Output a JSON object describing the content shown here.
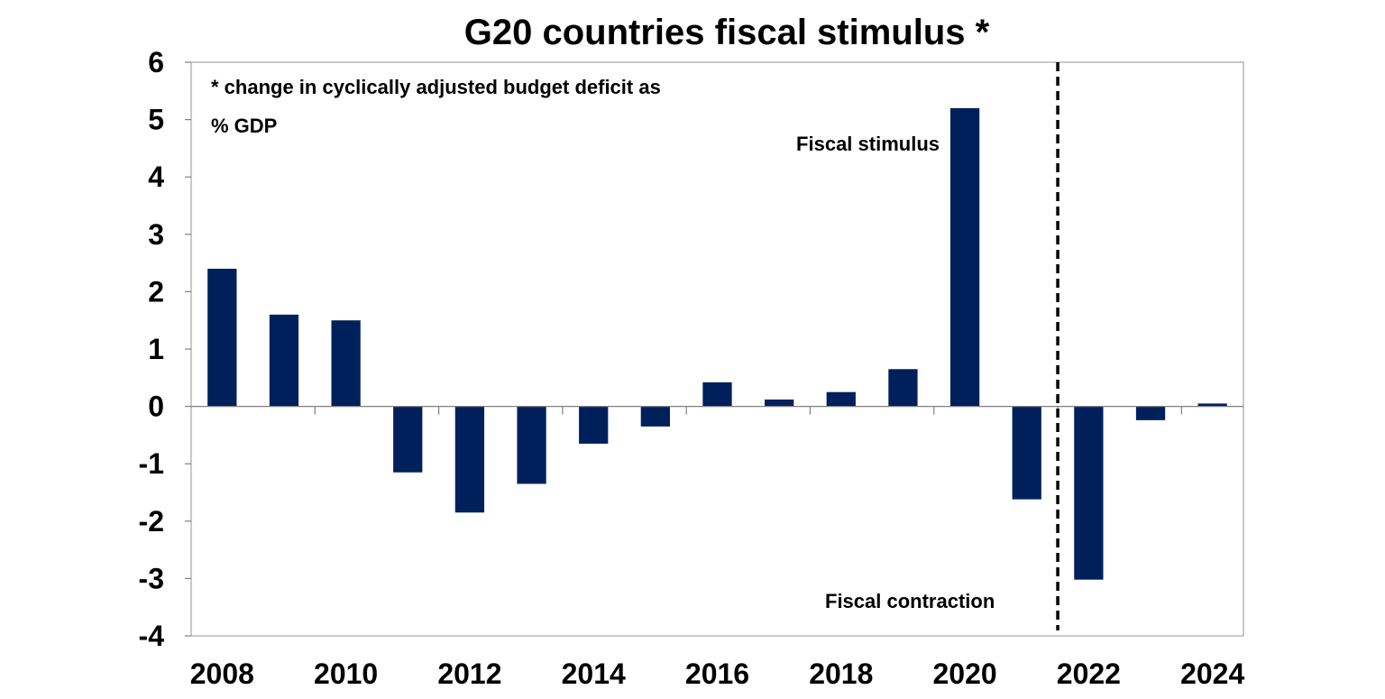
{
  "chart_data": {
    "type": "bar",
    "title": "G20 countries fiscal stimulus *",
    "note_lines": [
      "* change in cyclically adjusted budget deficit as",
      "% GDP"
    ],
    "categories": [
      "2008",
      "2009",
      "2010",
      "2011",
      "2012",
      "2013",
      "2014",
      "2015",
      "2016",
      "2017",
      "2018",
      "2019",
      "2020",
      "2021",
      "2022",
      "2023",
      "2024"
    ],
    "values": [
      2.4,
      1.6,
      1.5,
      -1.15,
      -1.85,
      -1.35,
      -0.65,
      -0.35,
      0.42,
      0.12,
      0.25,
      0.65,
      5.2,
      -1.62,
      -3.02,
      -0.24,
      0.05
    ],
    "x_tick_labels": [
      "2008",
      "2010",
      "2012",
      "2014",
      "2016",
      "2018",
      "2020",
      "2022",
      "2024"
    ],
    "y_tick_labels": [
      "-4",
      "-3",
      "-2",
      "-1",
      "0",
      "1",
      "2",
      "3",
      "4",
      "5",
      "6"
    ],
    "ylim": [
      -4,
      6
    ],
    "bar_color": "#00205B",
    "annotations": {
      "stimulus": "Fiscal stimulus",
      "contraction": "Fiscal contraction"
    },
    "divider_after": "2021",
    "grid": false,
    "legend": "none"
  }
}
